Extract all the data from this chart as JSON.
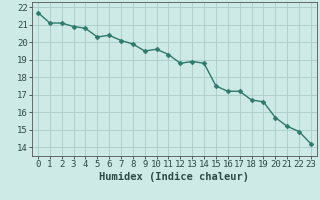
{
  "x_values": [
    0,
    1,
    2,
    3,
    4,
    5,
    6,
    7,
    8,
    9,
    10,
    11,
    12,
    13,
    14,
    15,
    16,
    17,
    18,
    19,
    20,
    21,
    22,
    23
  ],
  "y_values": [
    21.7,
    21.1,
    21.1,
    20.9,
    20.8,
    20.3,
    20.4,
    20.1,
    19.9,
    19.5,
    19.6,
    19.3,
    18.8,
    18.9,
    18.8,
    17.5,
    17.2,
    17.2,
    16.7,
    16.6,
    15.7,
    15.2,
    14.9,
    14.2
  ],
  "line_color": "#2d7a6c",
  "marker_color": "#2d7a6c",
  "bg_color": "#ceeae6",
  "grid_color": "#aaccc8",
  "axis_color": "#555555",
  "xlabel": "Humidex (Indice chaleur)",
  "xlim": [
    -0.5,
    23.5
  ],
  "ylim": [
    13.5,
    22.3
  ],
  "yticks": [
    14,
    15,
    16,
    17,
    18,
    19,
    20,
    21,
    22
  ],
  "xticks": [
    0,
    1,
    2,
    3,
    4,
    5,
    6,
    7,
    8,
    9,
    10,
    11,
    12,
    13,
    14,
    15,
    16,
    17,
    18,
    19,
    20,
    21,
    22,
    23
  ],
  "xlabel_fontsize": 7.5,
  "tick_fontsize": 6.5,
  "line_width": 1.0,
  "marker_size": 2.5
}
